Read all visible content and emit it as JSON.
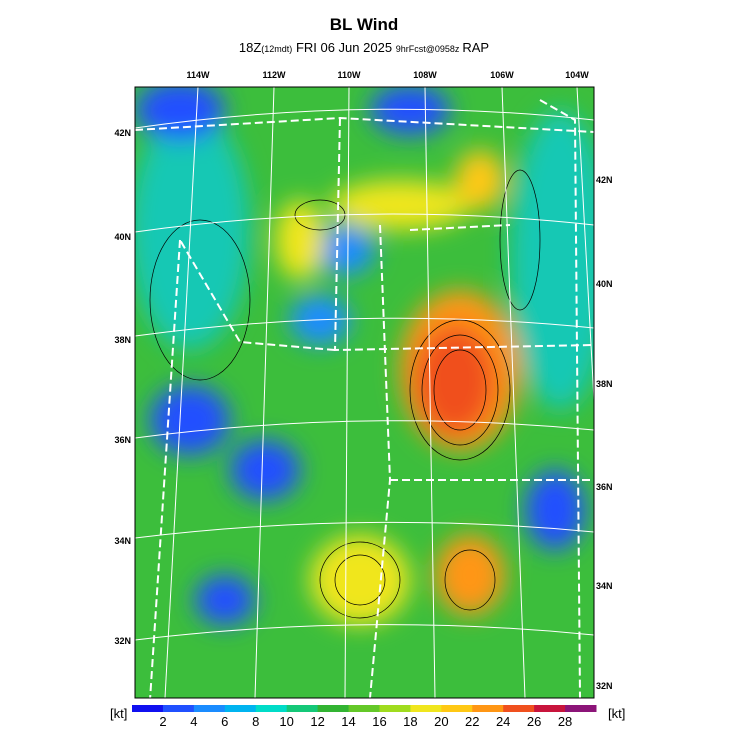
{
  "title": "BL Wind",
  "subtitle": {
    "time": "18Z",
    "local": "(12mdt)",
    "date": "FRI 06 Jun 2025",
    "forecast": "9hrFcst@0958z",
    "model": "RAP"
  },
  "lon_labels": [
    "114W",
    "112W",
    "110W",
    "108W",
    "106W",
    "104W"
  ],
  "lat_labels_left": [
    "42N",
    "40N",
    "38N",
    "36N",
    "34N",
    "32N"
  ],
  "lat_labels_right": [
    "42N",
    "40N",
    "38N",
    "36N",
    "34N",
    "32N"
  ],
  "colorbar": {
    "unit": "[kt]",
    "labels": [
      "2",
      "4",
      "6",
      "8",
      "10",
      "12",
      "14",
      "16",
      "18",
      "20",
      "22",
      "24",
      "26",
      "28"
    ],
    "colors": [
      "#1010f0",
      "#2050ff",
      "#1a8cff",
      "#00b4f0",
      "#00dcc8",
      "#14c878",
      "#32b432",
      "#64c828",
      "#a0dc1e",
      "#f0e61e",
      "#ffc814",
      "#ff9614",
      "#f0501e",
      "#c8143c",
      "#8c1478"
    ]
  }
}
